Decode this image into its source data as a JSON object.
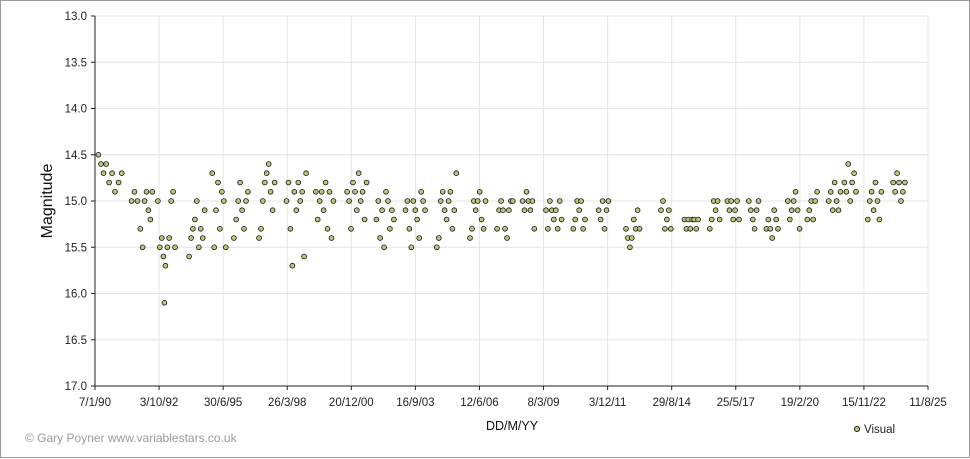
{
  "chart_data": {
    "type": "scatter",
    "xlabel": "DD/M/YY",
    "ylabel": "Magnitude",
    "x_ticks": [
      "7/1/90",
      "3/10/92",
      "30/6/95",
      "26/3/98",
      "20/12/00",
      "16/9/03",
      "12/6/06",
      "8/3/09",
      "3/12/11",
      "29/8/14",
      "25/5/17",
      "19/2/20",
      "15/11/22",
      "11/8/25"
    ],
    "y_ticks": [
      "13.0",
      "13.5",
      "14.0",
      "14.5",
      "15.0",
      "15.5",
      "16.0",
      "16.5",
      "17.0"
    ],
    "ylim": [
      17.0,
      13.0
    ],
    "y_inverted": true,
    "grid": true,
    "legend": "bottom-right",
    "series": [
      {
        "name": "Visual",
        "color": "#b5c97a",
        "edge_color": "#111111",
        "points": [
          [
            "1990-03-01",
            14.5
          ],
          [
            "1990-04-10",
            14.6
          ],
          [
            "1990-05-20",
            14.7
          ],
          [
            "1990-07-01",
            14.6
          ],
          [
            "1990-08-15",
            14.8
          ],
          [
            "1990-10-01",
            14.7
          ],
          [
            "1990-11-15",
            14.9
          ],
          [
            "1991-01-10",
            14.8
          ],
          [
            "1991-03-01",
            14.7
          ],
          [
            "1991-08-01",
            15.0
          ],
          [
            "1991-09-15",
            14.9
          ],
          [
            "1991-11-01",
            15.0
          ],
          [
            "1991-12-15",
            15.3
          ],
          [
            "1992-01-20",
            15.5
          ],
          [
            "1992-02-20",
            15.0
          ],
          [
            "1992-03-20",
            14.9
          ],
          [
            "1992-04-20",
            15.1
          ],
          [
            "1992-05-20",
            15.2
          ],
          [
            "1992-06-20",
            14.9
          ],
          [
            "1992-09-15",
            15.0
          ],
          [
            "1992-10-15",
            15.5
          ],
          [
            "1992-11-15",
            15.4
          ],
          [
            "1992-12-10",
            15.6
          ],
          [
            "1992-12-25",
            16.1
          ],
          [
            "1993-01-10",
            15.7
          ],
          [
            "1993-02-10",
            15.5
          ],
          [
            "1993-03-10",
            15.4
          ],
          [
            "1993-04-10",
            15.0
          ],
          [
            "1993-05-10",
            14.9
          ],
          [
            "1993-06-10",
            15.5
          ],
          [
            "1994-01-15",
            15.6
          ],
          [
            "1994-02-15",
            15.4
          ],
          [
            "1994-03-15",
            15.3
          ],
          [
            "1994-04-15",
            15.2
          ],
          [
            "1994-05-15",
            15.0
          ],
          [
            "1994-06-15",
            15.5
          ],
          [
            "1994-07-15",
            15.3
          ],
          [
            "1994-08-15",
            15.4
          ],
          [
            "1994-09-15",
            15.1
          ],
          [
            "1995-01-10",
            14.7
          ],
          [
            "1995-02-10",
            15.5
          ],
          [
            "1995-03-10",
            15.1
          ],
          [
            "1995-04-10",
            14.8
          ],
          [
            "1995-05-10",
            15.3
          ],
          [
            "1995-06-10",
            14.9
          ],
          [
            "1995-07-10",
            15.0
          ],
          [
            "1995-08-10",
            15.5
          ],
          [
            "1995-12-15",
            15.4
          ],
          [
            "1996-01-20",
            15.2
          ],
          [
            "1996-02-20",
            15.0
          ],
          [
            "1996-03-20",
            14.8
          ],
          [
            "1996-04-20",
            15.1
          ],
          [
            "1996-05-20",
            15.3
          ],
          [
            "1996-06-20",
            15.0
          ],
          [
            "1996-07-20",
            14.9
          ],
          [
            "1997-01-10",
            15.4
          ],
          [
            "1997-02-10",
            15.3
          ],
          [
            "1997-03-10",
            15.0
          ],
          [
            "1997-04-10",
            14.8
          ],
          [
            "1997-05-10",
            14.7
          ],
          [
            "1997-06-10",
            14.6
          ],
          [
            "1997-07-10",
            14.9
          ],
          [
            "1997-08-10",
            15.1
          ],
          [
            "1997-09-10",
            14.8
          ],
          [
            "1998-03-15",
            15.0
          ],
          [
            "1998-04-15",
            14.8
          ],
          [
            "1998-05-15",
            15.3
          ],
          [
            "1998-06-15",
            15.7
          ],
          [
            "1998-07-15",
            14.9
          ],
          [
            "1998-08-15",
            15.1
          ],
          [
            "1998-09-15",
            14.8
          ],
          [
            "1998-10-15",
            15.0
          ],
          [
            "1998-11-15",
            14.9
          ],
          [
            "1998-12-15",
            15.6
          ],
          [
            "1999-01-15",
            14.7
          ],
          [
            "1999-06-15",
            14.9
          ],
          [
            "1999-07-15",
            15.2
          ],
          [
            "1999-08-15",
            15.0
          ],
          [
            "1999-09-15",
            14.9
          ],
          [
            "1999-10-15",
            15.1
          ],
          [
            "1999-11-15",
            14.8
          ],
          [
            "1999-12-15",
            15.3
          ],
          [
            "2000-01-15",
            14.9
          ],
          [
            "2000-02-15",
            15.4
          ],
          [
            "2000-03-15",
            15.0
          ],
          [
            "2000-10-15",
            14.9
          ],
          [
            "2000-11-15",
            15.0
          ],
          [
            "2000-12-15",
            15.3
          ],
          [
            "2001-01-15",
            14.8
          ],
          [
            "2001-02-15",
            14.9
          ],
          [
            "2001-03-15",
            15.1
          ],
          [
            "2001-04-15",
            14.7
          ],
          [
            "2001-05-15",
            15.0
          ],
          [
            "2001-06-15",
            14.9
          ],
          [
            "2001-07-15",
            15.2
          ],
          [
            "2001-08-15",
            14.8
          ],
          [
            "2002-01-15",
            15.2
          ],
          [
            "2002-02-15",
            15.0
          ],
          [
            "2002-03-15",
            15.4
          ],
          [
            "2002-04-15",
            15.1
          ],
          [
            "2002-05-15",
            15.5
          ],
          [
            "2002-06-15",
            14.9
          ],
          [
            "2002-07-15",
            15.0
          ],
          [
            "2002-08-15",
            15.3
          ],
          [
            "2002-09-15",
            15.1
          ],
          [
            "2002-10-15",
            15.2
          ],
          [
            "2003-04-15",
            15.1
          ],
          [
            "2003-05-15",
            15.0
          ],
          [
            "2003-06-15",
            15.3
          ],
          [
            "2003-07-15",
            15.5
          ],
          [
            "2003-08-15",
            15.0
          ],
          [
            "2003-09-15",
            15.1
          ],
          [
            "2003-10-15",
            15.2
          ],
          [
            "2003-11-15",
            15.4
          ],
          [
            "2003-12-15",
            14.9
          ],
          [
            "2004-01-15",
            15.0
          ],
          [
            "2004-02-15",
            15.1
          ],
          [
            "2004-08-15",
            15.5
          ],
          [
            "2004-09-15",
            15.4
          ],
          [
            "2004-10-15",
            15.0
          ],
          [
            "2004-11-15",
            14.9
          ],
          [
            "2004-12-15",
            15.1
          ],
          [
            "2005-01-15",
            15.2
          ],
          [
            "2005-02-15",
            15.0
          ],
          [
            "2005-03-15",
            14.9
          ],
          [
            "2005-04-15",
            15.3
          ],
          [
            "2005-05-15",
            15.1
          ],
          [
            "2005-06-15",
            14.7
          ],
          [
            "2006-01-15",
            15.4
          ],
          [
            "2006-02-15",
            15.3
          ],
          [
            "2006-03-15",
            15.0
          ],
          [
            "2006-04-15",
            15.1
          ],
          [
            "2006-05-15",
            15.0
          ],
          [
            "2006-06-15",
            14.9
          ],
          [
            "2006-07-15",
            15.2
          ],
          [
            "2006-08-15",
            15.3
          ],
          [
            "2006-09-15",
            15.0
          ],
          [
            "2007-03-15",
            15.3
          ],
          [
            "2007-04-15",
            15.1
          ],
          [
            "2007-05-15",
            15.0
          ],
          [
            "2007-06-15",
            15.1
          ],
          [
            "2007-07-15",
            15.3
          ],
          [
            "2007-08-15",
            15.4
          ],
          [
            "2007-09-15",
            15.1
          ],
          [
            "2007-10-15",
            15.0
          ],
          [
            "2007-11-15",
            15.0
          ],
          [
            "2008-04-15",
            15.0
          ],
          [
            "2008-05-15",
            15.1
          ],
          [
            "2008-06-15",
            14.9
          ],
          [
            "2008-07-15",
            15.0
          ],
          [
            "2008-08-15",
            15.1
          ],
          [
            "2008-09-15",
            15.0
          ],
          [
            "2008-10-15",
            15.3
          ],
          [
            "2009-04-15",
            15.1
          ],
          [
            "2009-05-15",
            15.3
          ],
          [
            "2009-06-15",
            15.0
          ],
          [
            "2009-07-15",
            15.1
          ],
          [
            "2009-08-15",
            15.2
          ],
          [
            "2009-09-15",
            15.1
          ],
          [
            "2009-10-15",
            15.3
          ],
          [
            "2009-11-15",
            15.0
          ],
          [
            "2009-12-15",
            15.2
          ],
          [
            "2010-06-15",
            15.3
          ],
          [
            "2010-07-15",
            15.2
          ],
          [
            "2010-08-15",
            15.0
          ],
          [
            "2010-09-15",
            15.1
          ],
          [
            "2010-10-15",
            15.0
          ],
          [
            "2010-11-15",
            15.3
          ],
          [
            "2010-12-15",
            15.2
          ],
          [
            "2011-07-15",
            15.1
          ],
          [
            "2011-08-15",
            15.2
          ],
          [
            "2011-09-15",
            15.0
          ],
          [
            "2011-10-15",
            15.3
          ],
          [
            "2011-11-15",
            15.1
          ],
          [
            "2011-12-15",
            15.0
          ],
          [
            "2012-09-15",
            15.3
          ],
          [
            "2012-10-15",
            15.4
          ],
          [
            "2012-11-15",
            15.5
          ],
          [
            "2012-12-15",
            15.4
          ],
          [
            "2013-01-15",
            15.2
          ],
          [
            "2013-02-15",
            15.3
          ],
          [
            "2013-03-15",
            15.1
          ],
          [
            "2013-04-15",
            15.3
          ],
          [
            "2014-03-15",
            15.1
          ],
          [
            "2014-04-15",
            15.0
          ],
          [
            "2014-05-15",
            15.3
          ],
          [
            "2014-06-15",
            15.2
          ],
          [
            "2014-07-15",
            15.1
          ],
          [
            "2014-08-15",
            15.3
          ],
          [
            "2015-03-15",
            15.2
          ],
          [
            "2015-04-15",
            15.3
          ],
          [
            "2015-05-15",
            15.2
          ],
          [
            "2015-06-15",
            15.3
          ],
          [
            "2015-07-15",
            15.2
          ],
          [
            "2015-08-15",
            15.2
          ],
          [
            "2015-09-15",
            15.3
          ],
          [
            "2015-10-15",
            15.2
          ],
          [
            "2016-04-15",
            15.3
          ],
          [
            "2016-05-15",
            15.2
          ],
          [
            "2016-06-15",
            15.0
          ],
          [
            "2016-07-15",
            15.1
          ],
          [
            "2016-08-15",
            15.0
          ],
          [
            "2016-09-15",
            15.2
          ],
          [
            "2017-01-15",
            15.0
          ],
          [
            "2017-02-15",
            15.1
          ],
          [
            "2017-03-15",
            15.0
          ],
          [
            "2017-04-15",
            15.2
          ],
          [
            "2017-05-15",
            15.1
          ],
          [
            "2017-06-15",
            15.0
          ],
          [
            "2017-07-15",
            15.2
          ],
          [
            "2017-12-15",
            15.0
          ],
          [
            "2018-01-15",
            15.1
          ],
          [
            "2018-02-15",
            15.2
          ],
          [
            "2018-03-15",
            15.3
          ],
          [
            "2018-04-15",
            15.1
          ],
          [
            "2018-05-15",
            15.0
          ],
          [
            "2018-09-15",
            15.3
          ],
          [
            "2018-10-15",
            15.2
          ],
          [
            "2018-11-15",
            15.3
          ],
          [
            "2018-12-15",
            15.4
          ],
          [
            "2019-01-15",
            15.1
          ],
          [
            "2019-02-15",
            15.2
          ],
          [
            "2019-03-15",
            15.3
          ],
          [
            "2019-08-15",
            15.0
          ],
          [
            "2019-09-15",
            15.2
          ],
          [
            "2019-10-15",
            15.1
          ],
          [
            "2019-11-15",
            15.0
          ],
          [
            "2019-12-15",
            14.9
          ],
          [
            "2020-01-15",
            15.1
          ],
          [
            "2020-02-15",
            15.3
          ],
          [
            "2020-06-15",
            15.2
          ],
          [
            "2020-07-15",
            15.1
          ],
          [
            "2020-08-15",
            15.0
          ],
          [
            "2020-09-15",
            15.2
          ],
          [
            "2020-10-15",
            15.0
          ],
          [
            "2020-11-15",
            14.9
          ],
          [
            "2021-05-15",
            15.0
          ],
          [
            "2021-06-15",
            14.9
          ],
          [
            "2021-07-15",
            15.1
          ],
          [
            "2021-08-15",
            14.8
          ],
          [
            "2021-09-15",
            15.0
          ],
          [
            "2021-10-15",
            15.1
          ],
          [
            "2021-11-15",
            14.9
          ],
          [
            "2022-01-15",
            14.8
          ],
          [
            "2022-02-15",
            14.9
          ],
          [
            "2022-03-15",
            14.6
          ],
          [
            "2022-04-15",
            15.0
          ],
          [
            "2022-05-15",
            14.8
          ],
          [
            "2022-06-15",
            14.7
          ],
          [
            "2022-07-15",
            14.9
          ],
          [
            "2023-01-15",
            15.2
          ],
          [
            "2023-02-15",
            15.0
          ],
          [
            "2023-03-15",
            14.9
          ],
          [
            "2023-04-15",
            15.1
          ],
          [
            "2023-05-15",
            14.8
          ],
          [
            "2023-06-15",
            15.0
          ],
          [
            "2023-07-15",
            15.2
          ],
          [
            "2023-08-15",
            14.9
          ],
          [
            "2024-02-15",
            14.8
          ],
          [
            "2024-03-15",
            14.9
          ],
          [
            "2024-04-15",
            14.7
          ],
          [
            "2024-05-15",
            14.8
          ],
          [
            "2024-06-15",
            15.0
          ],
          [
            "2024-07-15",
            14.9
          ],
          [
            "2024-08-15",
            14.8
          ]
        ]
      }
    ]
  },
  "credit": "© Gary Poyner  www.variablestars.co.uk"
}
